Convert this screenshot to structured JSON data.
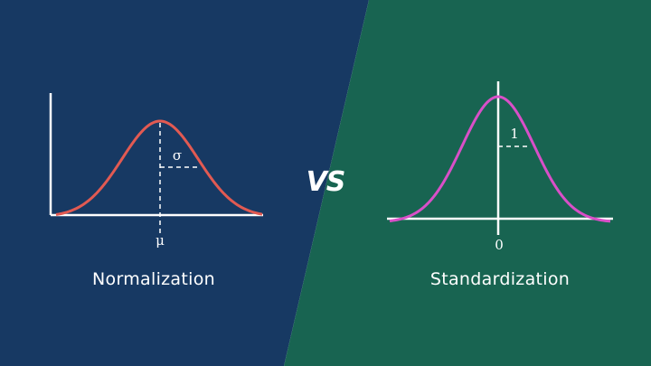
{
  "colors": {
    "left_bg": "#173963",
    "right_bg": "#186451",
    "axis": "#ffffff",
    "left_curve": "#e25a52",
    "right_curve": "#d94fc8"
  },
  "left_panel": {
    "title": "Normalization",
    "mean_symbol": "μ",
    "sigma_symbol": "σ"
  },
  "right_panel": {
    "title": "Standardization",
    "zero_label": "0",
    "one_label": "1"
  },
  "center_label": "VS"
}
